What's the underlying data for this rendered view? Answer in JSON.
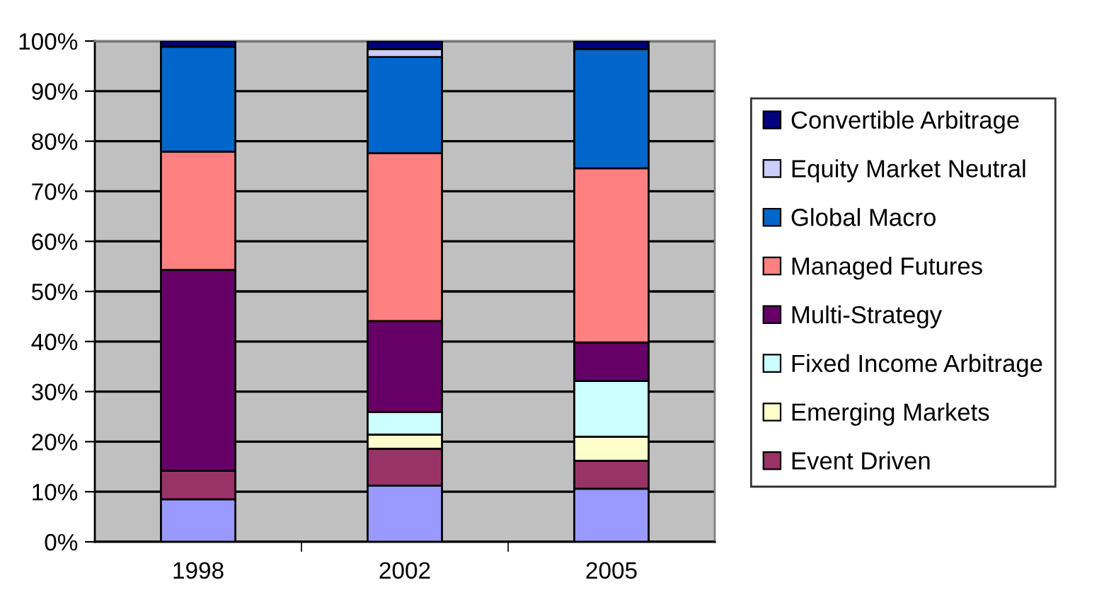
{
  "chart_data": {
    "type": "bar",
    "stacked": true,
    "categories": [
      "1998",
      "2002",
      "2005"
    ],
    "series": [
      {
        "color": "#9999ff",
        "values": [
          8.5,
          11.2,
          10.6
        ]
      },
      {
        "name": "Event Driven",
        "color": "#993366",
        "values": [
          5.7,
          7.4,
          5.6
        ]
      },
      {
        "name": "Emerging Markets",
        "color": "#ffffcc",
        "values": [
          0,
          2.8,
          4.8
        ]
      },
      {
        "name": "Fixed Income Arbitrage",
        "color": "#ccffff",
        "values": [
          0,
          4.5,
          11.1
        ]
      },
      {
        "name": "Multi-Strategy",
        "color": "#660066",
        "values": [
          40.1,
          18.2,
          7.7
        ]
      },
      {
        "name": "Managed Futures",
        "color": "#ff8080",
        "values": [
          23.6,
          33.5,
          34.8
        ]
      },
      {
        "name": "Global Macro",
        "color": "#0066cc",
        "values": [
          21.0,
          19.2,
          23.8
        ]
      },
      {
        "name": "Equity Market Neutral",
        "color": "#ccccff",
        "values": [
          0,
          1.6,
          0
        ]
      },
      {
        "name": "Convertible Arbitrage",
        "color": "#000080",
        "values": [
          1.1,
          1.6,
          1.6
        ]
      }
    ],
    "ylim": [
      0,
      100
    ],
    "yticks": [
      {
        "value": 0,
        "label": "0%"
      },
      {
        "value": 10,
        "label": "10%"
      },
      {
        "value": 20,
        "label": "20%"
      },
      {
        "value": 30,
        "label": "30%"
      },
      {
        "value": 40,
        "label": "40%"
      },
      {
        "value": 50,
        "label": "50%"
      },
      {
        "value": 60,
        "label": "60%"
      },
      {
        "value": 70,
        "label": "70%"
      },
      {
        "value": 80,
        "label": "80%"
      },
      {
        "value": 90,
        "label": "90%"
      },
      {
        "value": 100,
        "label": "100%"
      }
    ],
    "grid": "y",
    "legend": "right"
  }
}
